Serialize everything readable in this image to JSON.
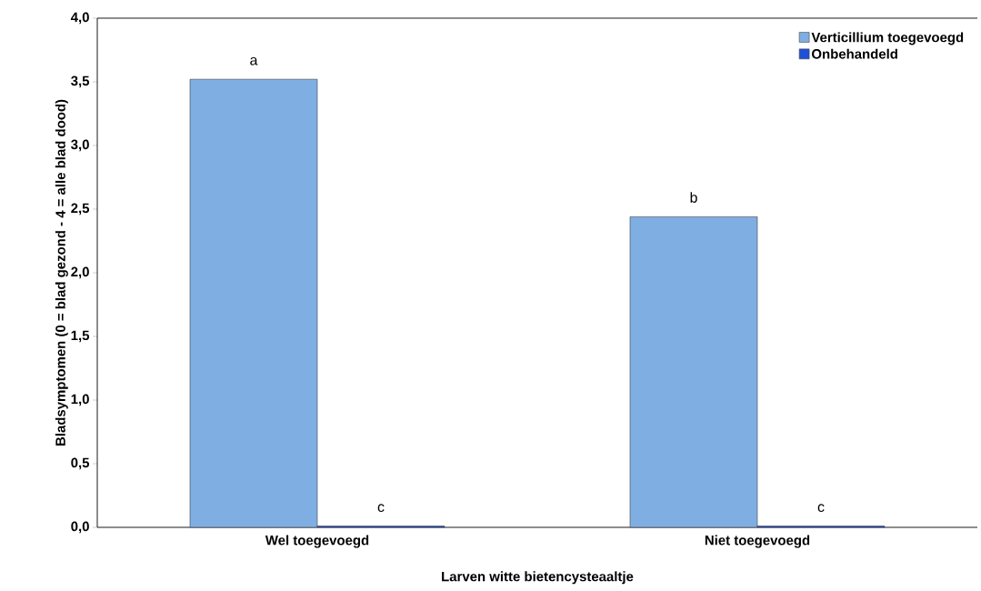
{
  "chart_data": {
    "type": "bar",
    "xlabel": "Larven witte bietencysteaaltje",
    "ylabel": "Bladsymptomen (0 = blad gezond - 4 = alle blad dood)",
    "categories": [
      "Wel toegevoegd",
      "Niet toegevoegd"
    ],
    "series": [
      {
        "name": "Verticillium toegevoegd",
        "color": "#7faee3",
        "values": [
          3.52,
          2.44
        ]
      },
      {
        "name": "Onbehandeld",
        "color": "#1f4fd8",
        "values": [
          0.01,
          0.01
        ]
      }
    ],
    "ylim": [
      0,
      4
    ],
    "yticks": [
      {
        "value": 0,
        "label": "0,0"
      },
      {
        "value": 0.5,
        "label": "0,5"
      },
      {
        "value": 1,
        "label": "1,0"
      },
      {
        "value": 1.5,
        "label": "1,5"
      },
      {
        "value": 2,
        "label": "2,0"
      },
      {
        "value": 2.5,
        "label": "2,5"
      },
      {
        "value": 3,
        "label": "3,0"
      },
      {
        "value": 3.5,
        "label": "3,5"
      },
      {
        "value": 4,
        "label": "4,0"
      }
    ],
    "annotations": [
      "a",
      "c",
      "b",
      "c"
    ],
    "legend": "top right",
    "grid": false
  }
}
